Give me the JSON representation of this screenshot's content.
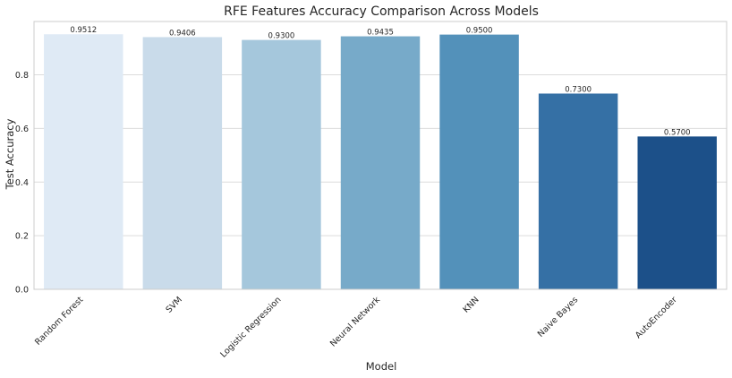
{
  "chart_data": {
    "type": "bar",
    "title": "RFE Features Accuracy Comparison Across Models",
    "xlabel": "Model",
    "ylabel": "Test Accuracy",
    "categories": [
      "Random Forest",
      "SVM",
      "Logistic Regression",
      "Neural Network",
      "KNN",
      "Naive Bayes",
      "AutoEncoder"
    ],
    "values": [
      0.9512,
      0.9406,
      0.93,
      0.9435,
      0.95,
      0.73,
      0.57
    ],
    "value_labels": [
      "0.9512",
      "0.9406",
      "0.9300",
      "0.9435",
      "0.9500",
      "0.7300",
      "0.5700"
    ],
    "yticks": [
      0.0,
      0.2,
      0.4,
      0.6,
      0.8
    ],
    "ytick_labels": [
      "0.0",
      "0.2",
      "0.4",
      "0.6",
      "0.8"
    ],
    "ylim": [
      0,
      0.9988
    ],
    "grid": true,
    "colors": [
      "#dfeaf5",
      "#c9dbea",
      "#a5c7dc",
      "#77aac9",
      "#5391ba",
      "#3570a5",
      "#1c5089"
    ]
  }
}
